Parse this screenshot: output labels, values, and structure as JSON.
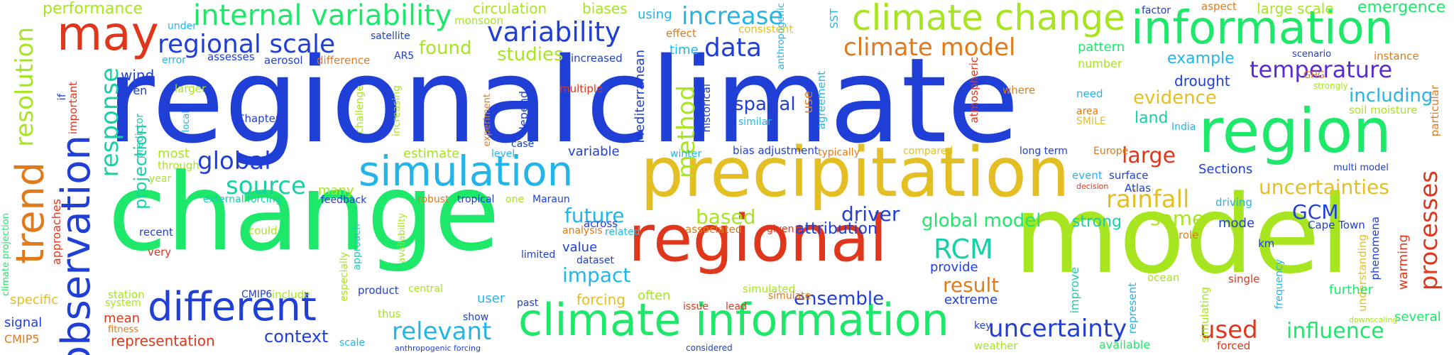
{
  "palette": {
    "blue": "#1f3fd6",
    "green": "#1ee86a",
    "lime": "#a6e51f",
    "red": "#e0361b",
    "orange": "#e07a1a",
    "gold": "#e4bf23",
    "cyan": "#23b5e8",
    "teal": "#17d0a8",
    "purple": "#5a2ad4"
  },
  "words": [
    {
      "text": "regional",
      "color": "blue"
    },
    {
      "text": "climate",
      "color": "blue"
    },
    {
      "text": "change",
      "color": "green"
    },
    {
      "text": "model",
      "color": "lime"
    },
    {
      "text": "precipitation",
      "color": "gold"
    },
    {
      "text": "regional",
      "color": "red"
    },
    {
      "text": "region",
      "color": "green"
    },
    {
      "text": "climate information",
      "color": "green"
    },
    {
      "text": "information",
      "color": "green"
    },
    {
      "text": "climate change",
      "color": "lime"
    },
    {
      "text": "simulation",
      "color": "cyan"
    },
    {
      "text": "observation",
      "color": "blue"
    },
    {
      "text": "different",
      "color": "blue"
    },
    {
      "text": "may",
      "color": "red"
    },
    {
      "text": "trend",
      "color": "orange"
    },
    {
      "text": "internal variability",
      "color": "green"
    },
    {
      "text": "regional scale",
      "color": "blue"
    },
    {
      "text": "variability",
      "color": "blue"
    },
    {
      "text": "increase",
      "color": "cyan"
    },
    {
      "text": "data",
      "color": "blue"
    },
    {
      "text": "climate model",
      "color": "orange"
    },
    {
      "text": "temperature",
      "color": "purple"
    },
    {
      "text": "evidence",
      "color": "gold"
    },
    {
      "text": "including",
      "color": "cyan"
    },
    {
      "text": "rainfall",
      "color": "gold"
    },
    {
      "text": "uncertainties",
      "color": "gold"
    },
    {
      "text": "processes",
      "color": "red"
    },
    {
      "text": "uncertainty",
      "color": "blue"
    },
    {
      "text": "used",
      "color": "red"
    },
    {
      "text": "influence",
      "color": "green"
    },
    {
      "text": "relevant",
      "color": "cyan"
    },
    {
      "text": "global model",
      "color": "green"
    },
    {
      "text": "RCM",
      "color": "teal"
    },
    {
      "text": "ensemble",
      "color": "blue"
    },
    {
      "text": "resolution",
      "color": "lime"
    },
    {
      "text": "response",
      "color": "teal"
    },
    {
      "text": "global",
      "color": "blue"
    },
    {
      "text": "source",
      "color": "teal"
    },
    {
      "text": "studies",
      "color": "lime"
    },
    {
      "text": "found",
      "color": "lime"
    },
    {
      "text": "method",
      "color": "lime"
    },
    {
      "text": "spatial",
      "color": "blue"
    },
    {
      "text": "large",
      "color": "red"
    },
    {
      "text": "land",
      "color": "teal"
    },
    {
      "text": "GCM",
      "color": "blue"
    },
    {
      "text": "some",
      "color": "lime"
    },
    {
      "text": "strong",
      "color": "teal"
    },
    {
      "text": "driver",
      "color": "blue"
    },
    {
      "text": "based",
      "color": "lime"
    },
    {
      "text": "future",
      "color": "cyan"
    },
    {
      "text": "impact",
      "color": "cyan"
    },
    {
      "text": "result",
      "color": "orange"
    },
    {
      "text": "context",
      "color": "blue"
    },
    {
      "text": "projection",
      "color": "teal"
    },
    {
      "text": "performance",
      "color": "lime"
    },
    {
      "text": "circulation",
      "color": "lime"
    },
    {
      "text": "biases",
      "color": "lime"
    },
    {
      "text": "using",
      "color": "cyan"
    },
    {
      "text": "emergence",
      "color": "green"
    },
    {
      "text": "large scale",
      "color": "lime"
    },
    {
      "text": "aspect",
      "color": "orange"
    },
    {
      "text": "factor",
      "color": "blue"
    },
    {
      "text": "example",
      "color": "cyan"
    },
    {
      "text": "drought",
      "color": "blue"
    },
    {
      "text": "pattern",
      "color": "green"
    },
    {
      "text": "number",
      "color": "lime"
    },
    {
      "text": "anthropogenic",
      "color": "cyan"
    },
    {
      "text": "SST",
      "color": "cyan"
    },
    {
      "text": "effect",
      "color": "orange"
    },
    {
      "text": "consistent",
      "color": "gold"
    },
    {
      "text": "time",
      "color": "cyan"
    },
    {
      "text": "increased",
      "color": "blue"
    },
    {
      "text": "Mediterranean",
      "color": "blue"
    },
    {
      "text": "multiple",
      "color": "red"
    },
    {
      "text": "historical",
      "color": "blue"
    },
    {
      "text": "similar",
      "color": "cyan"
    },
    {
      "text": "use",
      "color": "orange"
    },
    {
      "text": "agreement",
      "color": "cyan"
    },
    {
      "text": "atmospheric",
      "color": "red"
    },
    {
      "text": "need",
      "color": "cyan"
    },
    {
      "text": "area",
      "color": "orange"
    },
    {
      "text": "SMILE",
      "color": "gold"
    },
    {
      "text": "where",
      "color": "orange"
    },
    {
      "text": "India",
      "color": "cyan"
    },
    {
      "text": "soil moisture",
      "color": "lime"
    },
    {
      "text": "strongly",
      "color": "lime"
    },
    {
      "text": "scenario",
      "color": "blue"
    },
    {
      "text": "GHG",
      "color": "orange"
    },
    {
      "text": "instance",
      "color": "orange"
    },
    {
      "text": "particular",
      "color": "orange"
    },
    {
      "text": "compared",
      "color": "gold"
    },
    {
      "text": "long term",
      "color": "blue"
    },
    {
      "text": "Europe",
      "color": "orange"
    },
    {
      "text": "Sections",
      "color": "blue"
    },
    {
      "text": "multi model",
      "color": "blue"
    },
    {
      "text": "event",
      "color": "cyan"
    },
    {
      "text": "surface",
      "color": "blue"
    },
    {
      "text": "decision",
      "color": "red"
    },
    {
      "text": "Atlas",
      "color": "blue"
    },
    {
      "text": "driving",
      "color": "cyan"
    },
    {
      "text": "mode",
      "color": "blue"
    },
    {
      "text": "Cape Town",
      "color": "blue"
    },
    {
      "text": "role",
      "color": "orange"
    },
    {
      "text": "phenomena",
      "color": "blue"
    },
    {
      "text": "warming",
      "color": "red"
    },
    {
      "text": "km",
      "color": "blue"
    },
    {
      "text": "single",
      "color": "red"
    },
    {
      "text": "frequency",
      "color": "cyan"
    },
    {
      "text": "understanding",
      "color": "gold"
    },
    {
      "text": "further",
      "color": "green"
    },
    {
      "text": "several",
      "color": "green"
    },
    {
      "text": "downscaling",
      "color": "lime"
    },
    {
      "text": "ocean",
      "color": "lime"
    },
    {
      "text": "represent",
      "color": "cyan"
    },
    {
      "text": "improve",
      "color": "teal"
    },
    {
      "text": "simulating",
      "color": "lime"
    },
    {
      "text": "key",
      "color": "blue"
    },
    {
      "text": "weather",
      "color": "lime"
    },
    {
      "text": "available",
      "color": "green"
    },
    {
      "text": "forced",
      "color": "red"
    },
    {
      "text": "extreme",
      "color": "blue"
    },
    {
      "text": "provide",
      "color": "blue"
    },
    {
      "text": "attribution",
      "color": "blue"
    },
    {
      "text": "given",
      "color": "red"
    },
    {
      "text": "associated",
      "color": "orange"
    },
    {
      "text": "simulated",
      "color": "lime"
    },
    {
      "text": "simulate",
      "color": "orange"
    },
    {
      "text": "lead",
      "color": "red"
    },
    {
      "text": "issue",
      "color": "red"
    },
    {
      "text": "often",
      "color": "lime"
    },
    {
      "text": "considered",
      "color": "blue"
    },
    {
      "text": "forcing",
      "color": "gold"
    },
    {
      "text": "past",
      "color": "blue"
    },
    {
      "text": "user",
      "color": "cyan"
    },
    {
      "text": "show",
      "color": "blue"
    },
    {
      "text": "value",
      "color": "blue"
    },
    {
      "text": "dataset",
      "color": "blue"
    },
    {
      "text": "limited",
      "color": "blue"
    },
    {
      "text": "analysis",
      "color": "orange"
    },
    {
      "text": "related",
      "color": "cyan"
    },
    {
      "text": "across",
      "color": "blue"
    },
    {
      "text": "one",
      "color": "lime"
    },
    {
      "text": "Maraun",
      "color": "blue"
    },
    {
      "text": "tropical",
      "color": "blue"
    },
    {
      "text": "robust",
      "color": "orange"
    },
    {
      "text": "many",
      "color": "lime"
    },
    {
      "text": "feedback",
      "color": "blue"
    },
    {
      "text": "external forcing",
      "color": "teal"
    },
    {
      "text": "bias adjustment",
      "color": "blue"
    },
    {
      "text": "typically",
      "color": "orange"
    },
    {
      "text": "winter",
      "color": "cyan"
    },
    {
      "text": "variable",
      "color": "blue"
    },
    {
      "text": "level",
      "color": "cyan"
    },
    {
      "text": "case",
      "color": "blue"
    },
    {
      "text": "depend",
      "color": "blue"
    },
    {
      "text": "experiment",
      "color": "orange"
    },
    {
      "text": "estimate",
      "color": "lime"
    },
    {
      "text": "most",
      "color": "lime"
    },
    {
      "text": "through",
      "color": "lime"
    },
    {
      "text": "year",
      "color": "lime"
    },
    {
      "text": "predictor",
      "color": "teal"
    },
    {
      "text": "local",
      "color": "cyan"
    },
    {
      "text": "Chapters",
      "color": "blue"
    },
    {
      "text": "challenge",
      "color": "lime"
    },
    {
      "text": "increasing",
      "color": "lime"
    },
    {
      "text": "larger",
      "color": "lime"
    },
    {
      "text": "assesses",
      "color": "blue"
    },
    {
      "text": "error",
      "color": "cyan"
    },
    {
      "text": "aerosol",
      "color": "blue"
    },
    {
      "text": "difference",
      "color": "orange"
    },
    {
      "text": "AR5",
      "color": "blue"
    },
    {
      "text": "satellite",
      "color": "blue"
    },
    {
      "text": "under",
      "color": "cyan"
    },
    {
      "text": "monsoon",
      "color": "lime"
    },
    {
      "text": "wind",
      "color": "blue"
    },
    {
      "text": "even",
      "color": "blue"
    },
    {
      "text": "important",
      "color": "red"
    },
    {
      "text": "if",
      "color": "blue"
    },
    {
      "text": "climate projection",
      "color": "green"
    },
    {
      "text": "approaches",
      "color": "red"
    },
    {
      "text": "recent",
      "color": "blue"
    },
    {
      "text": "very",
      "color": "red"
    },
    {
      "text": "could",
      "color": "lime"
    },
    {
      "text": "especially",
      "color": "lime"
    },
    {
      "text": "approach",
      "color": "teal"
    },
    {
      "text": "availability",
      "color": "lime"
    },
    {
      "text": "CMIP6",
      "color": "blue"
    },
    {
      "text": "include",
      "color": "lime"
    },
    {
      "text": "product",
      "color": "blue"
    },
    {
      "text": "central",
      "color": "lime"
    },
    {
      "text": "thus",
      "color": "lime"
    },
    {
      "text": "station",
      "color": "lime"
    },
    {
      "text": "system",
      "color": "lime"
    },
    {
      "text": "specific",
      "color": "gold"
    },
    {
      "text": "mean",
      "color": "red"
    },
    {
      "text": "fitness",
      "color": "orange"
    },
    {
      "text": "signal",
      "color": "blue"
    },
    {
      "text": "CMIP5",
      "color": "orange"
    },
    {
      "text": "representation",
      "color": "red"
    },
    {
      "text": "scale",
      "color": "cyan"
    },
    {
      "text": "anthropogenic forcing",
      "color": "blue"
    }
  ]
}
